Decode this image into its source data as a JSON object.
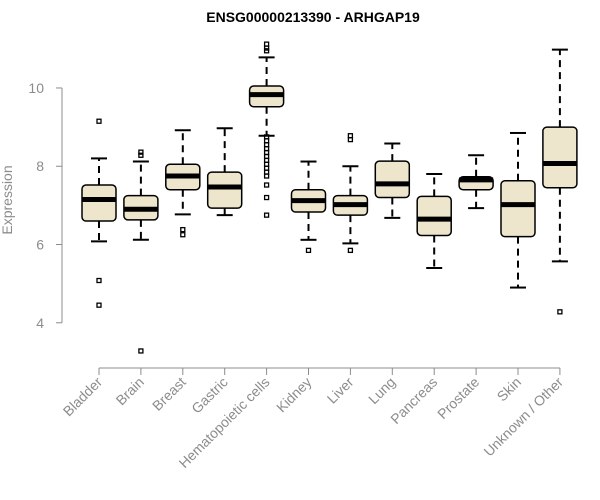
{
  "chart_data": {
    "type": "boxplot",
    "title": "ENSG00000213390 - ARHGAP19",
    "xlabel": "",
    "ylabel": "Expression",
    "ylim": [
      3.1,
      11.2
    ],
    "yticks": [
      4,
      6,
      8,
      10
    ],
    "box_fill": "#ede6cc",
    "box_stroke": "#000000",
    "categories": [
      "Bladder",
      "Brain",
      "Breast",
      "Gastric",
      "Hematopoietic cells",
      "Kidney",
      "Liver",
      "Lung",
      "Pancreas",
      "Prostate",
      "Skin",
      "Unknown / Other"
    ],
    "boxes": [
      {
        "name": "Bladder",
        "whisker_low": 6.08,
        "q1": 6.6,
        "median": 7.15,
        "q3": 7.52,
        "whisker_high": 8.2,
        "outliers": [
          9.15,
          5.08,
          4.45
        ]
      },
      {
        "name": "Brain",
        "whisker_low": 6.12,
        "q1": 6.63,
        "median": 6.9,
        "q3": 7.25,
        "whisker_high": 8.12,
        "outliers": [
          8.28,
          8.36,
          3.28
        ]
      },
      {
        "name": "Breast",
        "whisker_low": 6.77,
        "q1": 7.4,
        "median": 7.75,
        "q3": 8.05,
        "whisker_high": 8.92,
        "outliers": [
          6.38,
          6.25
        ]
      },
      {
        "name": "Gastric",
        "whisker_low": 6.75,
        "q1": 6.93,
        "median": 7.47,
        "q3": 7.85,
        "whisker_high": 8.97,
        "outliers": []
      },
      {
        "name": "Hematopoietic cells",
        "whisker_low": 8.78,
        "q1": 9.52,
        "median": 9.83,
        "q3": 10.05,
        "whisker_high": 10.78,
        "outliers": [
          11.12,
          11.02,
          10.95,
          8.75,
          8.65,
          8.55,
          8.45,
          8.35,
          8.25,
          8.15,
          8.05,
          7.95,
          7.85,
          7.75,
          7.52,
          7.2,
          6.75
        ]
      },
      {
        "name": "Kidney",
        "whisker_low": 6.12,
        "q1": 6.83,
        "median": 7.12,
        "q3": 7.4,
        "whisker_high": 8.12,
        "outliers": [
          5.85
        ]
      },
      {
        "name": "Liver",
        "whisker_low": 6.03,
        "q1": 6.75,
        "median": 7.02,
        "q3": 7.25,
        "whisker_high": 8.0,
        "outliers": [
          8.78,
          8.68,
          5.85
        ]
      },
      {
        "name": "Lung",
        "whisker_low": 6.68,
        "q1": 7.2,
        "median": 7.55,
        "q3": 8.13,
        "whisker_high": 8.58,
        "outliers": []
      },
      {
        "name": "Pancreas",
        "whisker_low": 5.4,
        "q1": 6.23,
        "median": 6.65,
        "q3": 7.23,
        "whisker_high": 7.8,
        "outliers": []
      },
      {
        "name": "Prostate",
        "whisker_low": 6.93,
        "q1": 7.4,
        "median": 7.65,
        "q3": 7.73,
        "whisker_high": 8.28,
        "outliers": []
      },
      {
        "name": "Skin",
        "whisker_low": 4.9,
        "q1": 6.2,
        "median": 7.02,
        "q3": 7.63,
        "whisker_high": 8.85,
        "outliers": []
      },
      {
        "name": "Unknown / Other",
        "whisker_low": 5.57,
        "q1": 7.45,
        "median": 8.07,
        "q3": 9.0,
        "whisker_high": 10.98,
        "outliers": [
          4.28
        ]
      }
    ]
  }
}
